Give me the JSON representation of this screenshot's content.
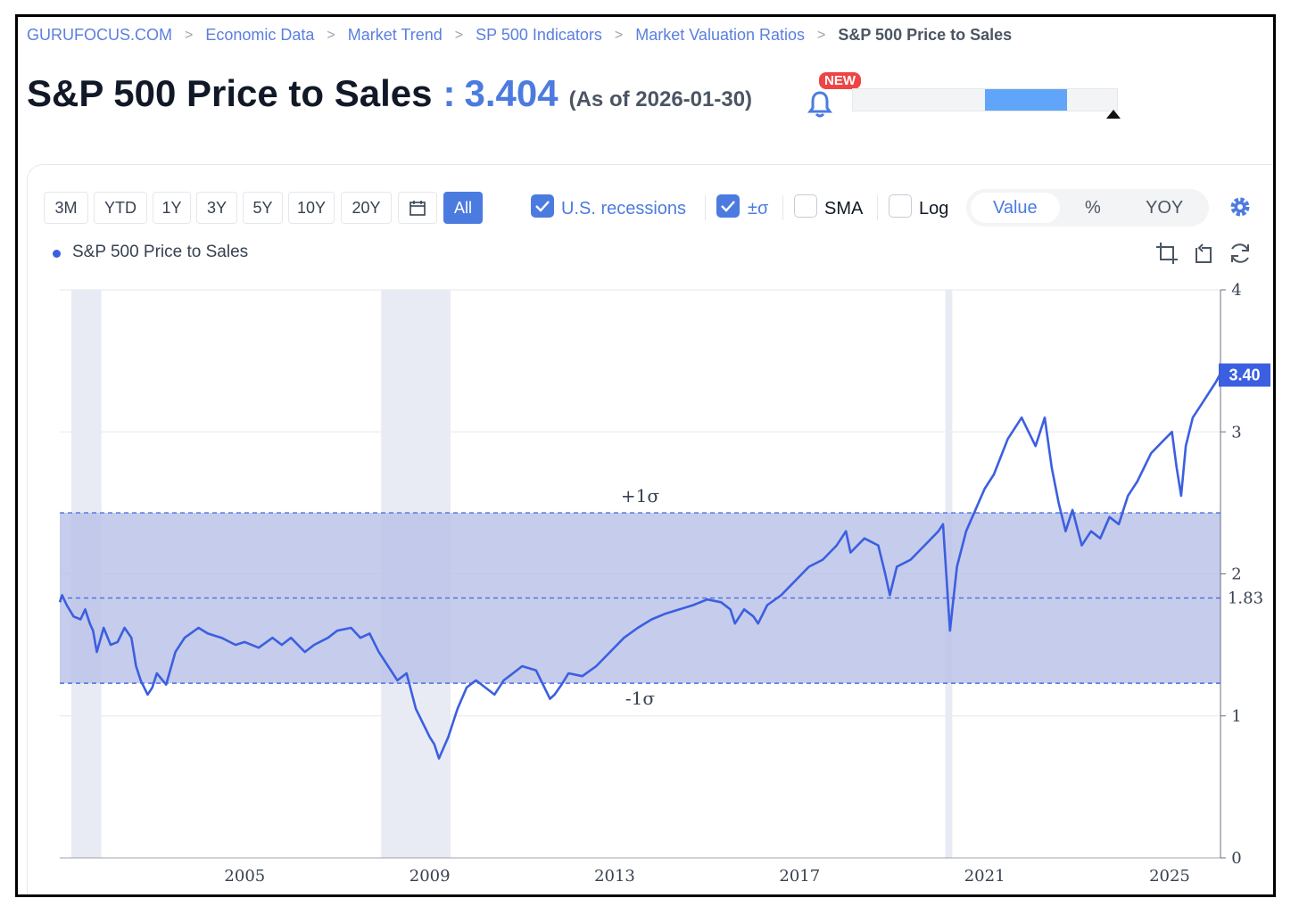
{
  "breadcrumb": {
    "items": [
      "GURUFOCUS.COM",
      "Economic Data",
      "Market Trend",
      "SP 500 Indicators",
      "Market Valuation Ratios"
    ],
    "current": "S&P 500 Price to Sales"
  },
  "header": {
    "title": "S&P 500 Price to Sales",
    "colon": ":",
    "value": "3.404",
    "as_of": "(As of 2026-01-30)",
    "new_badge": "NEW",
    "range_position": {
      "low_fraction": 0.5,
      "high_fraction": 0.81
    }
  },
  "toolbar": {
    "ranges": [
      "3M",
      "YTD",
      "1Y",
      "3Y",
      "5Y",
      "10Y",
      "20Y"
    ],
    "all_label": "All",
    "recessions_label": "U.S. recessions",
    "sigma_label": "±σ",
    "sma_label": "SMA",
    "log_label": "Log",
    "modes": [
      "Value",
      "%",
      "YOY"
    ],
    "active_mode": "Value"
  },
  "legend": {
    "series_name": "S&P 500 Price to Sales"
  },
  "colors": {
    "accent": "#4c7be0",
    "line": "#3b5fe0",
    "band": "#bcc3e8",
    "recession": "#e8ebf3",
    "badge": "#ef4444"
  },
  "icons": [
    "calendar-icon",
    "bell-icon",
    "gear-icon",
    "crop-icon",
    "rotate-icon",
    "refresh-icon",
    "check-icon"
  ],
  "chart_data": {
    "type": "line",
    "title": "S&P 500 Price to Sales",
    "y_axis": {
      "min": 0,
      "max": 4,
      "ticks": [
        0,
        1,
        2,
        3,
        4
      ],
      "position": "right"
    },
    "x_axis": {
      "min": 2001.0,
      "max": 2026.1,
      "ticks": [
        2005,
        2009,
        2013,
        2017,
        2021,
        2025
      ],
      "tick_labels": [
        "2005",
        "2009",
        "2013",
        "2017",
        "2021",
        "2025"
      ]
    },
    "mean": {
      "value": 1.83,
      "label": "1.83"
    },
    "plus_sigma": {
      "value": 2.43,
      "label": "+1σ"
    },
    "minus_sigma": {
      "value": 1.23,
      "label": "-1σ"
    },
    "last_value": {
      "value": 3.4,
      "label": "3.40"
    },
    "recessions": [
      [
        2001.25,
        2001.9
      ],
      [
        2007.95,
        2009.45
      ],
      [
        2020.15,
        2020.3
      ]
    ],
    "series": [
      {
        "name": "S&P 500 Price to Sales",
        "x": [
          2001.0,
          2001.05,
          2001.15,
          2001.3,
          2001.45,
          2001.55,
          2001.65,
          2001.72,
          2001.8,
          2001.95,
          2002.1,
          2002.25,
          2002.4,
          2002.55,
          2002.65,
          2002.75,
          2002.9,
          2003.0,
          2003.1,
          2003.3,
          2003.5,
          2003.7,
          2004.0,
          2004.2,
          2004.5,
          2004.8,
          2005.0,
          2005.3,
          2005.6,
          2005.8,
          2006.0,
          2006.3,
          2006.5,
          2006.8,
          2007.0,
          2007.3,
          2007.5,
          2007.7,
          2007.9,
          2008.1,
          2008.3,
          2008.5,
          2008.7,
          2008.85,
          2009.0,
          2009.1,
          2009.2,
          2009.4,
          2009.6,
          2009.8,
          2010.0,
          2010.2,
          2010.4,
          2010.6,
          2010.8,
          2011.0,
          2011.3,
          2011.6,
          2011.7,
          2011.85,
          2012.0,
          2012.3,
          2012.6,
          2012.9,
          2013.2,
          2013.5,
          2013.8,
          2014.1,
          2014.4,
          2014.7,
          2015.0,
          2015.3,
          2015.5,
          2015.6,
          2015.8,
          2016.0,
          2016.1,
          2016.3,
          2016.6,
          2016.9,
          2017.2,
          2017.5,
          2017.8,
          2018.0,
          2018.1,
          2018.4,
          2018.7,
          2018.85,
          2018.95,
          2019.1,
          2019.4,
          2019.7,
          2020.0,
          2020.1,
          2020.2,
          2020.25,
          2020.4,
          2020.6,
          2020.8,
          2021.0,
          2021.2,
          2021.5,
          2021.8,
          2021.95,
          2022.1,
          2022.3,
          2022.45,
          2022.6,
          2022.75,
          2022.9,
          2023.1,
          2023.3,
          2023.5,
          2023.7,
          2023.9,
          2024.1,
          2024.3,
          2024.6,
          2024.9,
          2025.05,
          2025.15,
          2025.25,
          2025.35,
          2025.5,
          2025.7,
          2025.9,
          2026.0,
          2026.08
        ],
        "values": [
          1.8,
          1.85,
          1.78,
          1.7,
          1.68,
          1.75,
          1.65,
          1.6,
          1.45,
          1.62,
          1.5,
          1.52,
          1.62,
          1.55,
          1.35,
          1.25,
          1.15,
          1.2,
          1.3,
          1.22,
          1.45,
          1.55,
          1.62,
          1.58,
          1.55,
          1.5,
          1.52,
          1.48,
          1.55,
          1.5,
          1.55,
          1.45,
          1.5,
          1.55,
          1.6,
          1.62,
          1.55,
          1.58,
          1.45,
          1.35,
          1.25,
          1.3,
          1.05,
          0.95,
          0.85,
          0.8,
          0.7,
          0.85,
          1.05,
          1.2,
          1.25,
          1.2,
          1.15,
          1.25,
          1.3,
          1.35,
          1.32,
          1.12,
          1.15,
          1.22,
          1.3,
          1.28,
          1.35,
          1.45,
          1.55,
          1.62,
          1.68,
          1.72,
          1.75,
          1.78,
          1.82,
          1.8,
          1.75,
          1.65,
          1.75,
          1.7,
          1.65,
          1.78,
          1.85,
          1.95,
          2.05,
          2.1,
          2.2,
          2.3,
          2.15,
          2.25,
          2.2,
          2.0,
          1.85,
          2.05,
          2.1,
          2.2,
          2.3,
          2.35,
          1.85,
          1.6,
          2.05,
          2.3,
          2.45,
          2.6,
          2.7,
          2.95,
          3.1,
          3.0,
          2.9,
          3.1,
          2.75,
          2.5,
          2.3,
          2.45,
          2.2,
          2.3,
          2.25,
          2.4,
          2.35,
          2.55,
          2.65,
          2.85,
          2.95,
          3.0,
          2.75,
          2.55,
          2.9,
          3.1,
          3.2,
          3.3,
          3.35,
          3.4
        ]
      }
    ]
  }
}
